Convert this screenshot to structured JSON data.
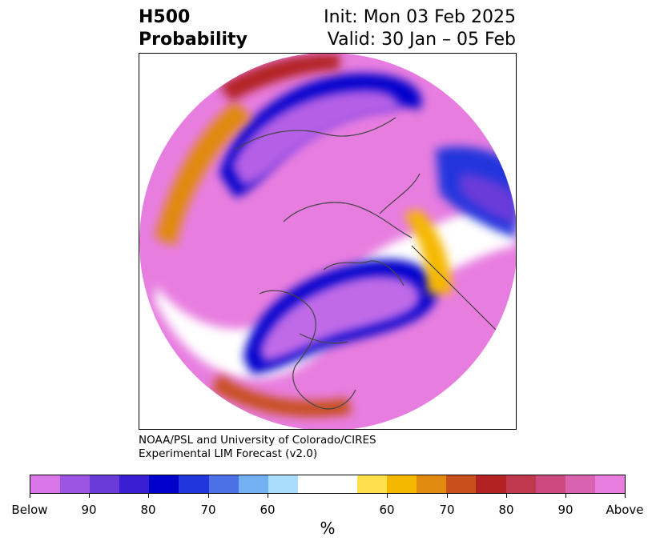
{
  "title": {
    "left_line1": "H500",
    "left_line2": "Probability",
    "right_line1": "Init: Mon 03 Feb 2025",
    "right_line2": "Valid: 30 Jan – 05 Feb"
  },
  "credit": {
    "line1": "NOAA/PSL and University of Colorado/CIRES",
    "line2": "Experimental LIM Forecast (v2.0)"
  },
  "colorbar": {
    "colors": [
      "#d977e8",
      "#9b55e0",
      "#6a3ad9",
      "#3a1ed4",
      "#0000cc",
      "#2236dd",
      "#4a72e6",
      "#73b0f2",
      "#aadcfb",
      "#ffffff",
      "#ffffff",
      "#ffe04a",
      "#f5b800",
      "#e08a10",
      "#c8501a",
      "#b22222",
      "#c0384e",
      "#cc4a7e",
      "#d963b0",
      "#e87de0"
    ],
    "tick_labels": [
      "Below",
      "90",
      "80",
      "70",
      "60",
      "60",
      "70",
      "80",
      "90",
      "Above"
    ],
    "units": "%"
  },
  "map": {
    "projection": "north-polar-stereographic",
    "field": "500 hPa height probability",
    "coastline_color": "#444444"
  }
}
